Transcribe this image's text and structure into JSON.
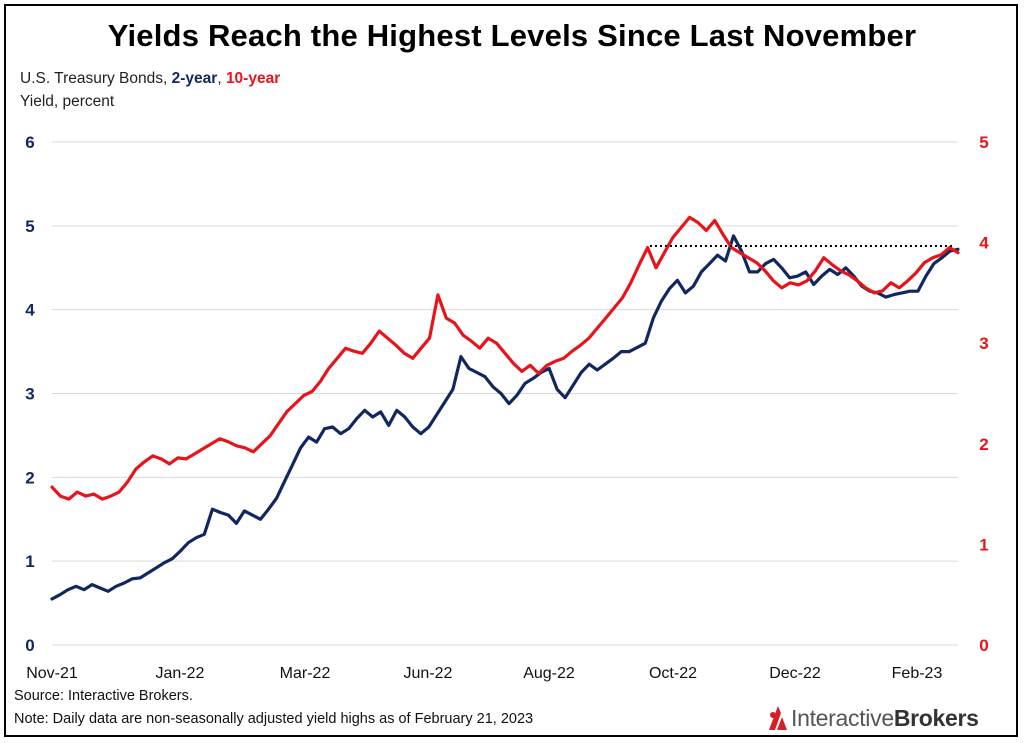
{
  "title": "Yields Reach the Highest Levels Since Last November",
  "subtitle": {
    "prefix": "U.S. Treasury Bonds, ",
    "series1": "2-year",
    "sep": ", ",
    "series2": "10-year"
  },
  "ylabel": "Yield, percent",
  "source": "Source: Interactive Brokers.",
  "note": "Note: Daily data are non-seasonally adjusted yield highs as of February 21, 2023",
  "logo": {
    "brand_light": "Interactive",
    "brand_bold": "Brokers",
    "icon": "ib-logo-icon"
  },
  "colors": {
    "two_year": "#10275f",
    "ten_year": "#e8141b",
    "reference": "#000000"
  },
  "chart_data": {
    "type": "line",
    "x_ticks": [
      "Nov-21",
      "Jan-22",
      "Mar-22",
      "Jun-22",
      "Aug-22",
      "Oct-22",
      "Dec-22",
      "Feb-23"
    ],
    "left_axis": {
      "ticks": [
        "0",
        "1",
        "2",
        "3",
        "4",
        "5",
        "6"
      ],
      "ylim": [
        0,
        6
      ],
      "series": "2-year"
    },
    "right_axis": {
      "ticks": [
        "0",
        "1",
        "2",
        "3",
        "4",
        "5"
      ],
      "ylim": [
        0,
        5
      ],
      "series": "10-year"
    },
    "grid": "horizontal",
    "series": [
      {
        "name": "2-year",
        "axis": "left",
        "values": [
          0.55,
          0.6,
          0.66,
          0.7,
          0.66,
          0.72,
          0.68,
          0.64,
          0.7,
          0.74,
          0.79,
          0.8,
          0.86,
          0.92,
          0.98,
          1.03,
          1.12,
          1.22,
          1.28,
          1.32,
          1.62,
          1.58,
          1.55,
          1.45,
          1.6,
          1.55,
          1.5,
          1.62,
          1.75,
          1.95,
          2.15,
          2.35,
          2.48,
          2.42,
          2.58,
          2.6,
          2.52,
          2.58,
          2.7,
          2.8,
          2.72,
          2.78,
          2.62,
          2.8,
          2.72,
          2.6,
          2.52,
          2.6,
          2.75,
          2.9,
          3.05,
          3.44,
          3.3,
          3.25,
          3.2,
          3.08,
          3.0,
          2.88,
          2.98,
          3.12,
          3.18,
          3.25,
          3.3,
          3.05,
          2.95,
          3.1,
          3.25,
          3.35,
          3.28,
          3.35,
          3.42,
          3.5,
          3.5,
          3.55,
          3.6,
          3.9,
          4.1,
          4.25,
          4.35,
          4.2,
          4.28,
          4.45,
          4.55,
          4.65,
          4.58,
          4.88,
          4.7,
          4.45,
          4.45,
          4.55,
          4.6,
          4.5,
          4.38,
          4.4,
          4.45,
          4.3,
          4.4,
          4.48,
          4.42,
          4.5,
          4.4,
          4.28,
          4.22,
          4.2,
          4.15,
          4.18,
          4.2,
          4.22,
          4.22,
          4.4,
          4.55,
          4.62,
          4.7,
          4.72
        ]
      },
      {
        "name": "10-year",
        "axis": "right",
        "values": [
          1.57,
          1.48,
          1.45,
          1.52,
          1.48,
          1.5,
          1.45,
          1.48,
          1.52,
          1.62,
          1.75,
          1.82,
          1.88,
          1.85,
          1.8,
          1.86,
          1.85,
          1.9,
          1.95,
          2.0,
          2.05,
          2.02,
          1.98,
          1.96,
          1.92,
          2.0,
          2.08,
          2.2,
          2.32,
          2.4,
          2.48,
          2.52,
          2.62,
          2.75,
          2.85,
          2.95,
          2.92,
          2.9,
          3.0,
          3.12,
          3.05,
          2.98,
          2.9,
          2.85,
          2.95,
          3.05,
          3.48,
          3.25,
          3.2,
          3.08,
          3.02,
          2.95,
          3.05,
          3.0,
          2.9,
          2.8,
          2.72,
          2.78,
          2.7,
          2.78,
          2.82,
          2.85,
          2.92,
          2.98,
          3.05,
          3.15,
          3.25,
          3.35,
          3.45,
          3.6,
          3.78,
          3.95,
          3.75,
          3.9,
          4.05,
          4.15,
          4.25,
          4.2,
          4.12,
          4.22,
          4.08,
          3.95,
          3.9,
          3.85,
          3.8,
          3.72,
          3.62,
          3.55,
          3.6,
          3.58,
          3.62,
          3.72,
          3.85,
          3.78,
          3.72,
          3.68,
          3.62,
          3.55,
          3.5,
          3.52,
          3.6,
          3.55,
          3.62,
          3.7,
          3.8,
          3.85,
          3.88,
          3.95,
          3.9
        ]
      }
    ],
    "reference_line": {
      "style": "dotted",
      "axis": "left",
      "value": 4.76,
      "x_start_fraction": 0.66,
      "x_end_fraction": 1.0
    }
  }
}
